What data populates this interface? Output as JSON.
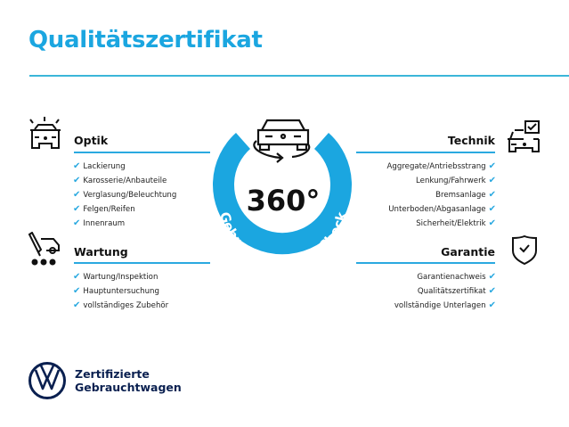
{
  "title": "Qualitätszertifikat",
  "center": {
    "value": "360°",
    "arc_text": "Gebrauchtwagen-Check",
    "icon": "car-rotate-icon"
  },
  "sections": {
    "optik": {
      "heading": "Optik",
      "icon": "car-lights-icon",
      "items": [
        "Lackierung",
        "Karosserie/Anbauteile",
        "Verglasung/Beleuchtung",
        "Felgen/Reifen",
        "Innenraum"
      ]
    },
    "wartung": {
      "heading": "Wartung",
      "icon": "service-tool-icon",
      "items": [
        "Wartung/Inspektion",
        "Hauptuntersuchung",
        "vollständiges Zubehör"
      ]
    },
    "technik": {
      "heading": "Technik",
      "icon": "car-check-icon",
      "items": [
        "Aggregate/Antriebsstrang",
        "Lenkung/Fahrwerk",
        "Bremsanlage",
        "Unterboden/Abgasanlage",
        "Sicherheit/Elektrik"
      ]
    },
    "garantie": {
      "heading": "Garantie",
      "icon": "shield-check-icon",
      "items": [
        "Garantienachweis",
        "Qualitätszertifikat",
        "vollständige Unterlagen"
      ]
    }
  },
  "check_mark": "✔",
  "logo": {
    "line1": "Zertifizierte",
    "line2": "Gebrauchtwagen",
    "brand_lettering": "VW"
  },
  "colors": {
    "accent": "#1ba6e0",
    "brand_navy": "#0a2050"
  }
}
